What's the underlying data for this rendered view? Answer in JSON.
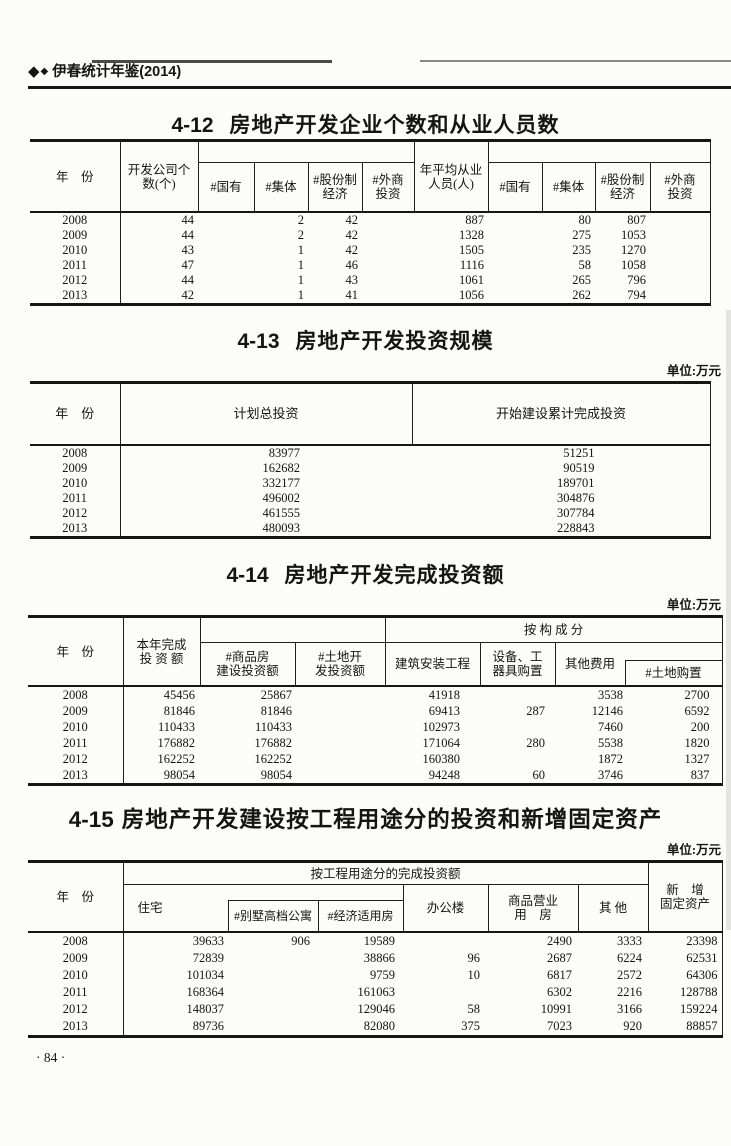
{
  "page": {
    "brand": "伊春统计年鉴(2014)",
    "diamond1": "◆",
    "diamond2": "◆",
    "page_number": "· 84 ·"
  },
  "t412": {
    "no": "4-12",
    "title": "房地产开发企业个数和从业人员数",
    "h": {
      "year": "年　份",
      "companies_l1": "开发公司个",
      "companies_l2": "数(个)",
      "staff_l1": "年平均从业",
      "staff_l2": "人员(人)",
      "state": "#国有",
      "collective": "#集体",
      "share_l1": "#股份制",
      "share_l2": "经济",
      "foreign_l1": "#外商",
      "foreign_l2": "投资"
    },
    "rows": [
      [
        "2008",
        "44",
        "",
        "2",
        "42",
        "",
        "887",
        "",
        "80",
        "807",
        ""
      ],
      [
        "2009",
        "44",
        "",
        "2",
        "42",
        "",
        "1328",
        "",
        "275",
        "1053",
        ""
      ],
      [
        "2010",
        "43",
        "",
        "1",
        "42",
        "",
        "1505",
        "",
        "235",
        "1270",
        ""
      ],
      [
        "2011",
        "47",
        "",
        "1",
        "46",
        "",
        "1116",
        "",
        "58",
        "1058",
        ""
      ],
      [
        "2012",
        "44",
        "",
        "1",
        "43",
        "",
        "1061",
        "",
        "265",
        "796",
        ""
      ],
      [
        "2013",
        "42",
        "",
        "1",
        "41",
        "",
        "1056",
        "",
        "262",
        "794",
        ""
      ]
    ]
  },
  "t413": {
    "no": "4-13",
    "title": "房地产开发投资规模",
    "unit": "单位:万元",
    "h": {
      "year": "年　份",
      "planned": "计划总投资",
      "completed": "开始建设累计完成投资"
    },
    "rows": [
      [
        "2008",
        "83977",
        "51251"
      ],
      [
        "2009",
        "162682",
        "90519"
      ],
      [
        "2010",
        "332177",
        "189701"
      ],
      [
        "2011",
        "496002",
        "304876"
      ],
      [
        "2012",
        "461555",
        "307784"
      ],
      [
        "2013",
        "480093",
        "228843"
      ]
    ]
  },
  "t414": {
    "no": "4-14",
    "title": "房地产开发完成投资额",
    "unit": "单位:万元",
    "h": {
      "year": "年　份",
      "total_l1": "本年完成",
      "total_l2": "投 资 额",
      "commodity_l1": "#商品房",
      "commodity_l2": "建设投资额",
      "land_l1": "#土地开",
      "land_l2": "发投资额",
      "group": "按 构 成 分",
      "construction": "建筑安装工程",
      "equipment_l1": "设备、工",
      "equipment_l2": "器具购置",
      "other": "其他费用",
      "land_purchase": "#土地购置"
    },
    "rows": [
      [
        "2008",
        "45456",
        "25867",
        "",
        "41918",
        "",
        "3538",
        "2700"
      ],
      [
        "2009",
        "81846",
        "81846",
        "",
        "69413",
        "287",
        "12146",
        "6592"
      ],
      [
        "2010",
        "110433",
        "110433",
        "",
        "102973",
        "",
        "7460",
        "200"
      ],
      [
        "2011",
        "176882",
        "176882",
        "",
        "171064",
        "280",
        "5538",
        "1820"
      ],
      [
        "2012",
        "162252",
        "162252",
        "",
        "160380",
        "",
        "1872",
        "1327"
      ],
      [
        "2013",
        "98054",
        "98054",
        "",
        "94248",
        "60",
        "3746",
        "837"
      ]
    ]
  },
  "t415": {
    "no": "4-15",
    "title": "房地产开发建设按工程用途分的投资和新增固定资产",
    "unit": "单位:万元",
    "h": {
      "year": "年　份",
      "group": "按工程用途分的完成投资额",
      "residential": "住宅",
      "villa": "#别墅高档公寓",
      "affordable": "#经济适用房",
      "office": "办公楼",
      "commercial_l1": "商品营业",
      "commercial_l2": "用　房",
      "other": "其 他",
      "new_l1": "新　增",
      "new_l2": "固定资产"
    },
    "rows": [
      [
        "2008",
        "39633",
        "906",
        "19589",
        "",
        "2490",
        "3333",
        "23398"
      ],
      [
        "2009",
        "72839",
        "",
        "38866",
        "96",
        "2687",
        "6224",
        "62531"
      ],
      [
        "2010",
        "101034",
        "",
        "9759",
        "10",
        "6817",
        "2572",
        "64306"
      ],
      [
        "2011",
        "168364",
        "",
        "161063",
        "",
        "6302",
        "2216",
        "128788"
      ],
      [
        "2012",
        "148037",
        "",
        "129046",
        "58",
        "10991",
        "3166",
        "159224"
      ],
      [
        "2013",
        "89736",
        "",
        "82080",
        "375",
        "7023",
        "920",
        "88857"
      ]
    ]
  }
}
